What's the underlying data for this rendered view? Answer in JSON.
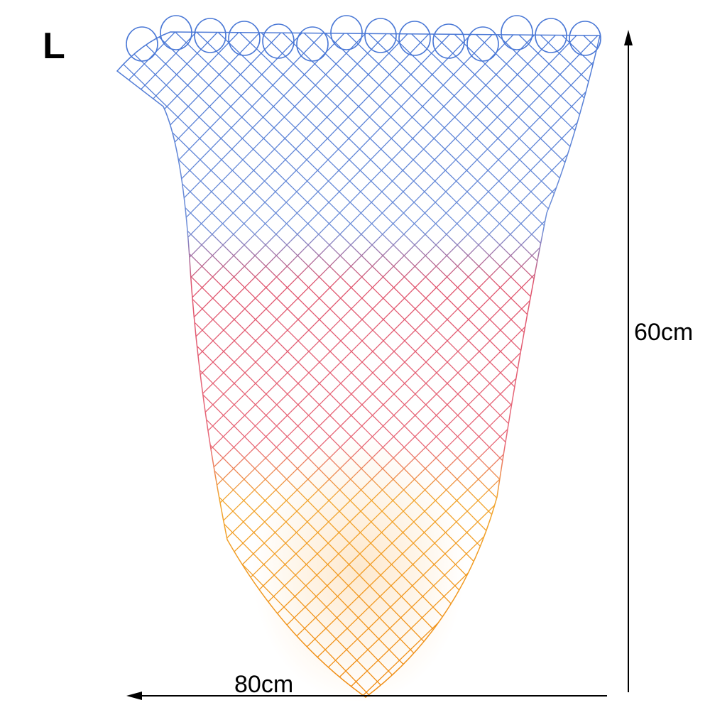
{
  "size_label": "L",
  "height_label": "60cm",
  "width_label": "80cm"
}
